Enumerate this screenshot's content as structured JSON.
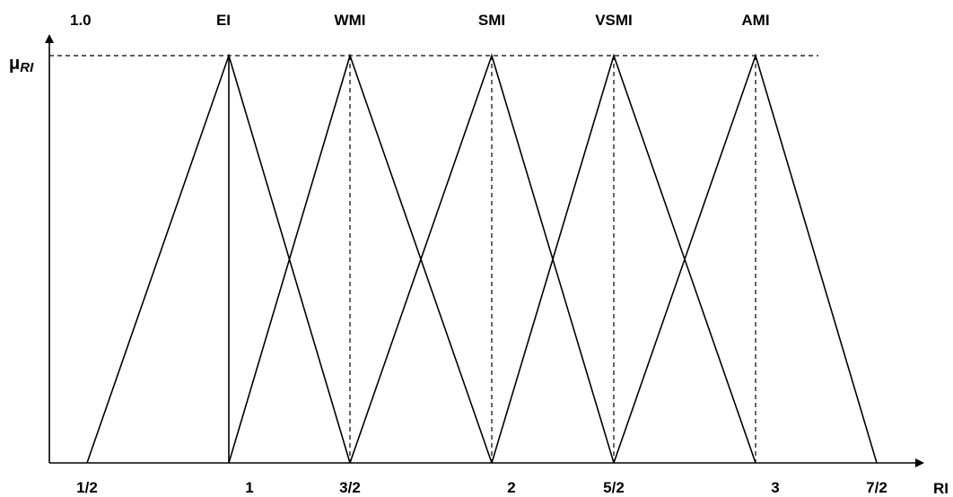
{
  "chart_data": {
    "type": "line",
    "ytick_top": "1.0",
    "ylabel": {
      "main": "μ",
      "sub": "RI"
    },
    "xlabel": "RI",
    "xticks": [
      {
        "value": 0.5,
        "label": "1/2"
      },
      {
        "value": 1,
        "label": "1"
      },
      {
        "value": 1.5,
        "label": "3/2"
      },
      {
        "value": 2,
        "label": "2"
      },
      {
        "value": 2.5,
        "label": "5/2"
      },
      {
        "value": 3,
        "label": "3"
      },
      {
        "value": 3.5,
        "label": "7/2"
      }
    ],
    "series": [
      {
        "name": "EI",
        "points": [
          [
            0.5,
            0
          ],
          [
            1,
            1
          ],
          [
            1.5,
            0
          ]
        ],
        "peak_line": "solid"
      },
      {
        "name": "WMI",
        "points": [
          [
            1,
            0
          ],
          [
            1.5,
            1
          ],
          [
            2,
            0
          ]
        ],
        "peak_line": "dashed"
      },
      {
        "name": "SMI",
        "points": [
          [
            1.5,
            0
          ],
          [
            2,
            1
          ],
          [
            2.5,
            0
          ]
        ],
        "peak_line": "dashed"
      },
      {
        "name": "VSMI",
        "points": [
          [
            2,
            0
          ],
          [
            2.5,
            1
          ],
          [
            3,
            0
          ]
        ],
        "peak_line": "dashed"
      },
      {
        "name": "AMI",
        "points": [
          [
            2.5,
            0
          ],
          [
            3,
            1
          ],
          [
            3.5,
            0
          ]
        ],
        "peak_line": "dashed"
      }
    ],
    "ylim": [
      0,
      1
    ]
  }
}
